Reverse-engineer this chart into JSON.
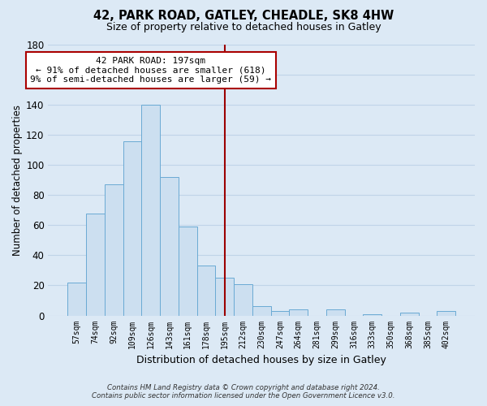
{
  "title": "42, PARK ROAD, GATLEY, CHEADLE, SK8 4HW",
  "subtitle": "Size of property relative to detached houses in Gatley",
  "xlabel": "Distribution of detached houses by size in Gatley",
  "ylabel": "Number of detached properties",
  "bar_labels": [
    "57sqm",
    "74sqm",
    "92sqm",
    "109sqm",
    "126sqm",
    "143sqm",
    "161sqm",
    "178sqm",
    "195sqm",
    "212sqm",
    "230sqm",
    "247sqm",
    "264sqm",
    "281sqm",
    "299sqm",
    "316sqm",
    "333sqm",
    "350sqm",
    "368sqm",
    "385sqm",
    "402sqm"
  ],
  "bar_values": [
    22,
    68,
    87,
    116,
    140,
    92,
    59,
    33,
    25,
    21,
    6,
    3,
    4,
    0,
    4,
    0,
    1,
    0,
    2,
    0,
    3
  ],
  "bar_color": "#ccdff0",
  "bar_edge_color": "#6aaad4",
  "vline_x_idx": 8,
  "vline_color": "#9b0000",
  "annotation_title": "42 PARK ROAD: 197sqm",
  "annotation_line1": "← 91% of detached houses are smaller (618)",
  "annotation_line2": "9% of semi-detached houses are larger (59) →",
  "annotation_box_color": "#ffffff",
  "annotation_box_edge": "#aa0000",
  "ylim": [
    0,
    180
  ],
  "yticks": [
    0,
    20,
    40,
    60,
    80,
    100,
    120,
    140,
    160,
    180
  ],
  "footer_line1": "Contains HM Land Registry data © Crown copyright and database right 2024.",
  "footer_line2": "Contains public sector information licensed under the Open Government Licence v3.0.",
  "bg_color": "#dce9f5",
  "plot_bg_color": "#dce9f5",
  "grid_color": "#c0d4e8"
}
